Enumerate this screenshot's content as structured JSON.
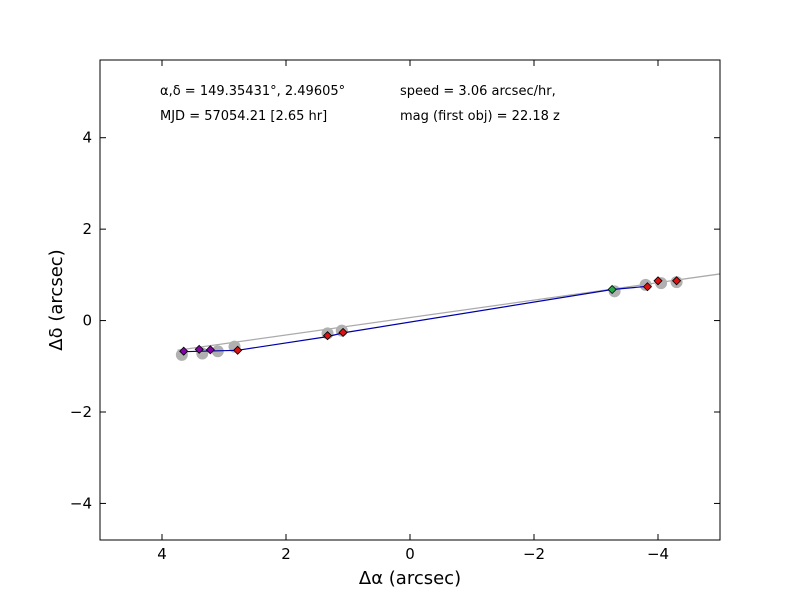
{
  "chart_data": {
    "type": "scatter",
    "title": "",
    "xlabel": "Δα (arcsec)",
    "ylabel": "Δδ (arcsec)",
    "xlim": [
      5,
      -5
    ],
    "ylim": [
      -4.8,
      5.7
    ],
    "x_ticks": [
      4,
      2,
      0,
      -2,
      -4
    ],
    "x_tick_labels": [
      "4",
      "2",
      "0",
      "−2",
      "−4"
    ],
    "y_ticks": [
      4,
      2,
      0,
      -2,
      -4
    ],
    "y_tick_labels": [
      "4",
      "2",
      "0",
      "−2",
      "−4"
    ],
    "grid": false,
    "annotations": {
      "coords": "α,δ = 149.35431°, 2.49605°",
      "mjd": "MJD = 57054.21 [2.65 hr]",
      "speed": "speed = 3.06 arcsec/hr,",
      "mag": "mag (first obj) = 22.18 z"
    },
    "fit_line": {
      "color": "#aaaaaa",
      "points": [
        [
          3.75,
          -0.65
        ],
        [
          -5.0,
          1.02
        ]
      ]
    },
    "track_line": {
      "color": "#0000aa",
      "points": [
        [
          3.65,
          -0.68
        ],
        [
          2.78,
          -0.65
        ],
        [
          1.33,
          -0.35
        ],
        [
          1.08,
          -0.27
        ],
        [
          -3.26,
          0.68
        ],
        [
          -3.83,
          0.75
        ]
      ]
    },
    "gray_points": [
      [
        3.68,
        -0.75
      ],
      [
        3.35,
        -0.72
      ],
      [
        3.1,
        -0.67
      ],
      [
        2.83,
        -0.57
      ],
      [
        1.33,
        -0.28
      ],
      [
        1.1,
        -0.22
      ],
      [
        -3.3,
        0.64
      ],
      [
        -3.8,
        0.78
      ],
      [
        -4.05,
        0.82
      ],
      [
        -4.3,
        0.84
      ]
    ],
    "series": [
      {
        "color": "#8800aa",
        "points": [
          [
            3.65,
            -0.67
          ],
          [
            3.4,
            -0.63
          ],
          [
            3.22,
            -0.64
          ]
        ]
      },
      {
        "color": "#dd1111",
        "points": [
          [
            2.78,
            -0.65
          ],
          [
            1.33,
            -0.33
          ],
          [
            1.08,
            -0.26
          ],
          [
            -3.83,
            0.74
          ],
          [
            -4.0,
            0.87
          ],
          [
            -4.3,
            0.87
          ]
        ]
      },
      {
        "color": "#22aa44",
        "points": [
          [
            -3.26,
            0.68
          ]
        ]
      }
    ]
  }
}
